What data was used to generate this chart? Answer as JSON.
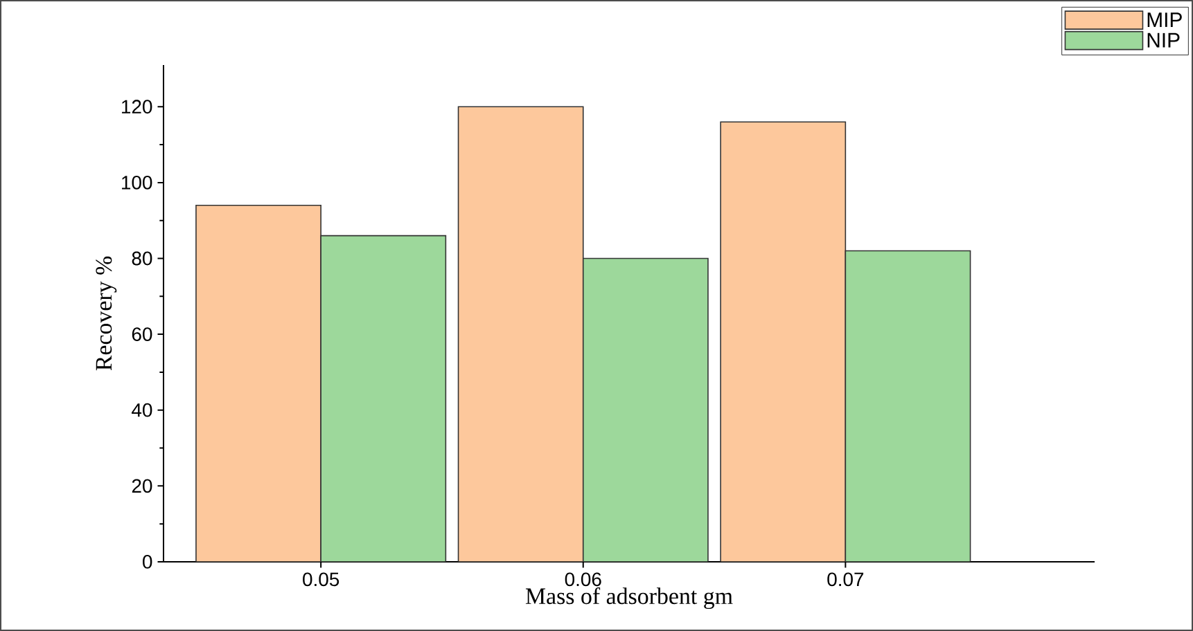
{
  "chart_data": {
    "type": "bar",
    "xlabel": "Mass of adsorbent gm",
    "ylabel": "Recovery %",
    "categories": [
      "0.05",
      "0.06",
      "0.07"
    ],
    "series": [
      {
        "name": "MIP",
        "color": "#fdc89c",
        "values": [
          94,
          120,
          116
        ]
      },
      {
        "name": "NIP",
        "color": "#9dd89b",
        "values": [
          86,
          80,
          82
        ]
      }
    ],
    "ylim": [
      0,
      131
    ],
    "yticks": [
      0,
      20,
      40,
      60,
      80,
      100,
      120
    ],
    "legend": "top right"
  }
}
